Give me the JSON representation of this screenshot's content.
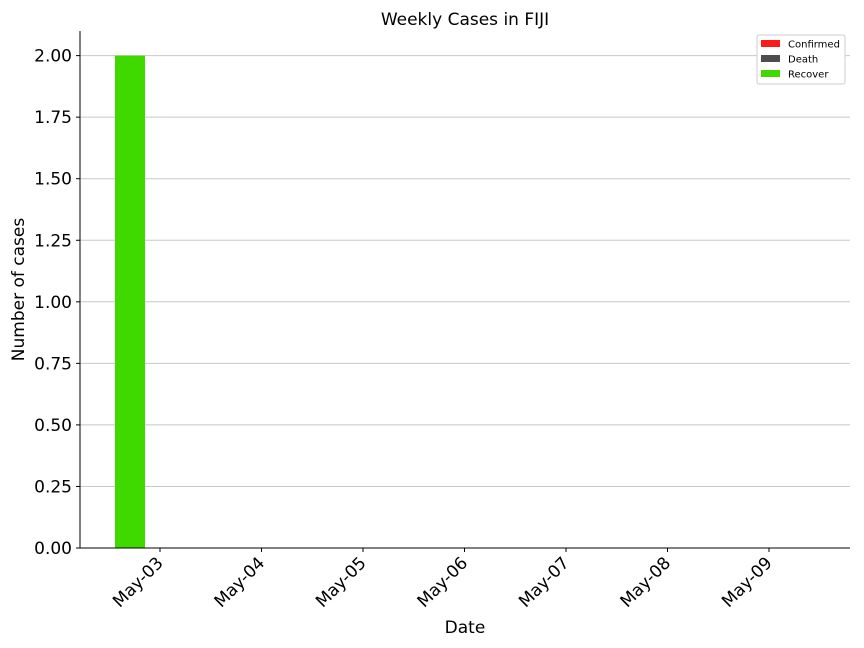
{
  "chart_data": {
    "type": "bar",
    "title": "Weekly Cases in FIJI",
    "xlabel": "Date",
    "ylabel": "Number of cases",
    "categories": [
      "May-03",
      "May-04",
      "May-05",
      "May-06",
      "May-07",
      "May-08",
      "May-09"
    ],
    "series": [
      {
        "name": "Confirmed",
        "color": "#ff1a1a",
        "values": [
          0,
          0,
          0,
          0,
          0,
          0,
          0
        ]
      },
      {
        "name": "Death",
        "color": "#4d4d4d",
        "values": [
          0,
          0,
          0,
          0,
          0,
          0,
          0
        ]
      },
      {
        "name": "Recover",
        "color": "#3fd900",
        "values": [
          2,
          0,
          0,
          0,
          0,
          0,
          0
        ]
      }
    ],
    "ylim": [
      0,
      2.1
    ],
    "yticks": [
      "0.00",
      "0.25",
      "0.50",
      "0.75",
      "1.00",
      "1.25",
      "1.50",
      "1.75",
      "2.00"
    ],
    "grid": "horizontal",
    "legend_position": "top-right"
  }
}
